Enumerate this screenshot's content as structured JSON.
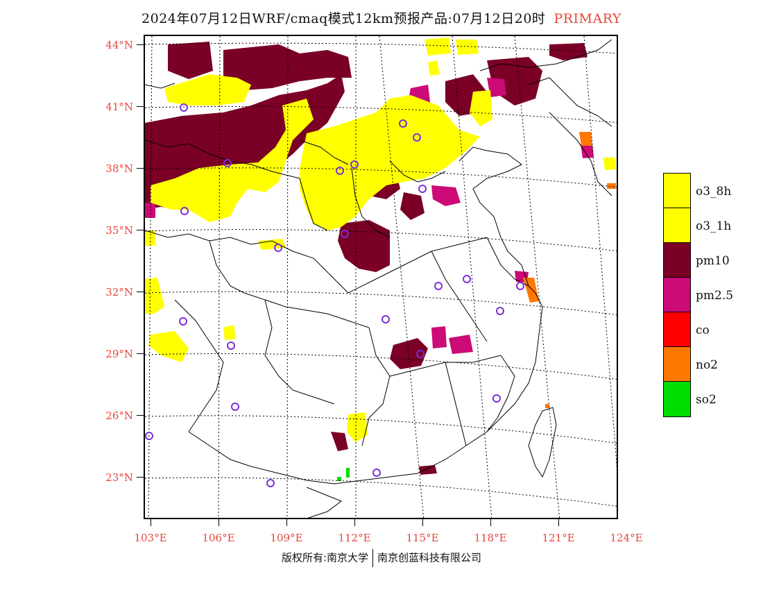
{
  "title": {
    "main": "2024年07月12日WRF/cmaq模式12km预报产品:07月12日20时",
    "tag": "PRIMARY"
  },
  "axes": {
    "lat_labels": [
      "44°N",
      "41°N",
      "38°N",
      "35°N",
      "32°N",
      "29°N",
      "26°N",
      "23°N"
    ],
    "lon_labels": [
      "103°E",
      "106°E",
      "109°E",
      "112°E",
      "115°E",
      "118°E",
      "121°E",
      "124°E"
    ]
  },
  "legend": {
    "items": [
      {
        "label": "o3_8h",
        "color": "#ffff00"
      },
      {
        "label": "o3_1h",
        "color": "#ffff00"
      },
      {
        "label": "pm10",
        "color": "#7a0026"
      },
      {
        "label": "pm2.5",
        "color": "#cc0a78"
      },
      {
        "label": "co",
        "color": "#ff0000"
      },
      {
        "label": "no2",
        "color": "#ff7800"
      },
      {
        "label": "so2",
        "color": "#00dd00"
      }
    ]
  },
  "footer": {
    "left": "版权所有:南京大学",
    "right": "南京创蓝科技有限公司"
  },
  "colors": {
    "accent_label": "#e8463c",
    "station_marker": "#7b2fd8"
  }
}
